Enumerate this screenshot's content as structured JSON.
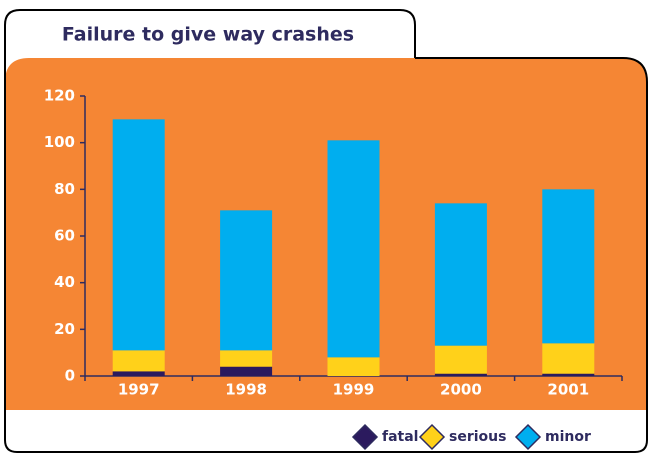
{
  "chart_data": {
    "type": "stacked_bar",
    "title": "Failure to give way crashes",
    "categories": [
      "1997",
      "1998",
      "1999",
      "2000",
      "2001"
    ],
    "series": [
      {
        "name": "fatal",
        "color": "#2b1a5e",
        "values": [
          2,
          4,
          0,
          1,
          1
        ]
      },
      {
        "name": "serious",
        "color": "#ffd11a",
        "values": [
          9,
          7,
          8,
          12,
          13
        ]
      },
      {
        "name": "minor",
        "color": "#00aeef",
        "values": [
          99,
          60,
          93,
          61,
          66
        ]
      }
    ],
    "ylim": [
      0,
      120
    ],
    "yticks": [
      0,
      20,
      40,
      60,
      80,
      100,
      120
    ],
    "legend": "bottom-right"
  }
}
